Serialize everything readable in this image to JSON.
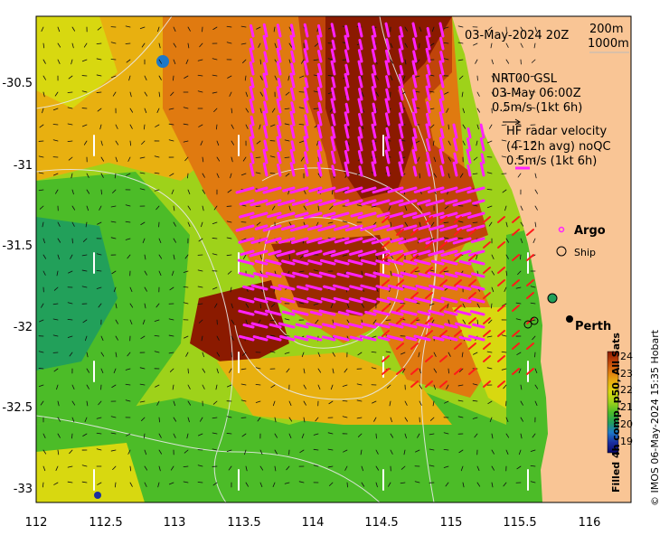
{
  "map": {
    "timestamp": "03-May-2024 20Z",
    "depth_legend": [
      "200m",
      "1000m"
    ],
    "gsl": {
      "title": "NRT00 GSL",
      "time": "03-May 06:00Z",
      "scale": "0.5m/s (1kt 6h)"
    },
    "hf_radar": {
      "title": "HF radar velocity",
      "subtitle": "(4-12h avg) noQC",
      "scale": "0.5m/s (1kt 6h)"
    },
    "legend_argo": "Argo",
    "legend_ship": "Ship",
    "city": "Perth",
    "colorbar": {
      "label": "Filled 4h comp, p50, All Sats",
      "ticks": [
        "24",
        "23",
        "22",
        "21",
        "20",
        "19"
      ],
      "colors": [
        "#8b1a00",
        "#c0440a",
        "#e07a10",
        "#e8b010",
        "#d8d810",
        "#9ed21a",
        "#4cbc28",
        "#22a05a",
        "#1e78c8",
        "#1a2ea0",
        "#0a0a6a"
      ]
    },
    "x_ticks": [
      "112",
      "112.5",
      "113",
      "113.5",
      "114",
      "114.5",
      "115",
      "115.5",
      "116"
    ],
    "y_ticks": [
      "-30.5",
      "-31",
      "-31.5",
      "-32",
      "-32.5",
      "-33"
    ],
    "credit": "© IMOS 06-May-2024 15:35 Hobart",
    "colors": {
      "land": "#f9c595",
      "hf_vectors": "#ff22ff",
      "gsl_vectors": "#ff1a1a",
      "contours": "#e8e8e8"
    }
  }
}
